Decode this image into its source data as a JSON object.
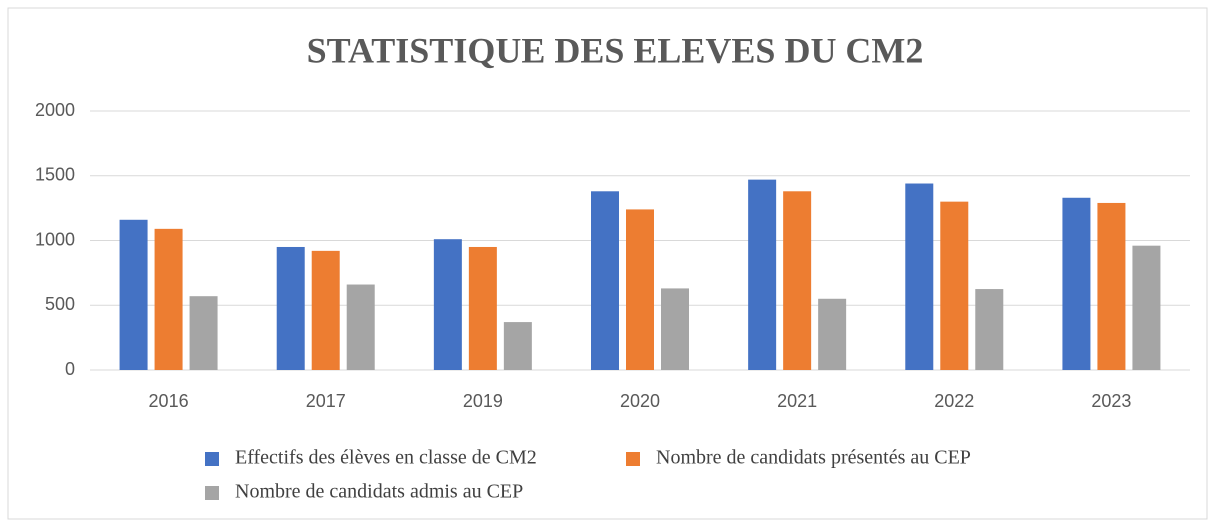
{
  "chart_data": {
    "type": "bar",
    "title": "STATISTIQUE DES ELEVES DU CM2",
    "categories": [
      "2016",
      "2017",
      "2019",
      "2020",
      "2021",
      "2022",
      "2023"
    ],
    "series": [
      {
        "name": "Effectifs des élèves en classe de CM2",
        "color": "#4472c4",
        "values": [
          1160,
          950,
          1010,
          1380,
          1470,
          1440,
          1330
        ]
      },
      {
        "name": "Nombre de candidats présentés au CEP",
        "color": "#ed7d31",
        "values": [
          1090,
          920,
          950,
          1240,
          1380,
          1300,
          1290
        ]
      },
      {
        "name": "Nombre de candidats admis au CEP",
        "color": "#a5a5a5",
        "values": [
          570,
          660,
          370,
          630,
          550,
          625,
          960
        ]
      }
    ],
    "ylim": [
      0,
      2000
    ],
    "yticks": [
      0,
      500,
      1000,
      1500,
      2000
    ],
    "grid": true,
    "legend": "bottom"
  }
}
